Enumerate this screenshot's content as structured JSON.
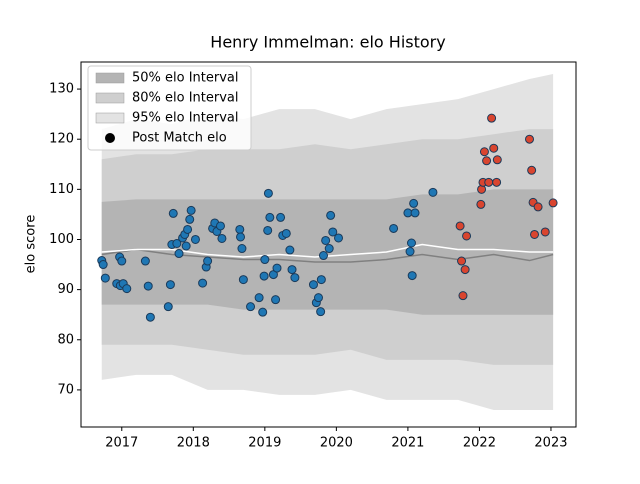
{
  "chart_data": {
    "type": "scatter",
    "title": "Henry Immelman: elo History",
    "y_label": "elo score",
    "xlim": [
      2016.43,
      2023.35
    ],
    "ylim": [
      62.6,
      135.4
    ],
    "xticks": [
      2017,
      2018,
      2019,
      2020,
      2021,
      2022,
      2023
    ],
    "yticks": [
      70,
      80,
      90,
      100,
      110,
      120,
      130
    ],
    "legend": "upper left",
    "bands": [
      {
        "name": "95% elo Interval",
        "color": "#e3e3e3",
        "x": [
          2016.72,
          2017.2,
          2017.7,
          2018.2,
          2018.7,
          2019.2,
          2019.7,
          2020.2,
          2020.7,
          2021.2,
          2021.7,
          2022.2,
          2022.7,
          2023.03
        ],
        "upper": [
          122,
          124,
          123,
          125,
          124,
          126,
          126,
          124,
          126,
          127,
          128,
          130,
          132,
          133
        ],
        "lower": [
          72,
          73,
          73,
          70,
          70,
          69,
          69,
          70,
          68,
          68,
          68,
          66,
          66,
          66
        ]
      },
      {
        "name": "80% elo Interval",
        "color": "#cfcfcf",
        "x": [
          2016.72,
          2017.2,
          2017.7,
          2018.2,
          2018.7,
          2019.2,
          2019.7,
          2020.2,
          2020.7,
          2021.2,
          2021.7,
          2022.2,
          2022.7,
          2023.03
        ],
        "upper": [
          116,
          117,
          117,
          118,
          118,
          118,
          119,
          118,
          119,
          120,
          120,
          121,
          122,
          122
        ],
        "lower": [
          79,
          79,
          79,
          78,
          77,
          77,
          77,
          78,
          76,
          76,
          76,
          75,
          75,
          75
        ]
      },
      {
        "name": "50% elo Interval",
        "color": "#b4b4b4",
        "x": [
          2016.72,
          2017.2,
          2017.7,
          2018.2,
          2018.7,
          2019.2,
          2019.7,
          2020.2,
          2020.7,
          2021.2,
          2021.7,
          2022.2,
          2022.7,
          2023.03
        ],
        "upper": [
          107.5,
          108,
          108,
          108,
          108,
          108,
          108,
          108,
          108,
          109,
          109,
          110,
          110,
          110
        ],
        "lower": [
          87,
          87,
          87,
          87,
          86,
          86,
          86,
          86,
          86,
          85,
          85,
          85,
          85,
          85
        ]
      }
    ],
    "lines": [
      {
        "color": "#808080",
        "x": [
          2016.72,
          2017.2,
          2017.7,
          2018.2,
          2018.7,
          2019.2,
          2019.7,
          2020.2,
          2020.7,
          2021.2,
          2021.7,
          2022.2,
          2022.7,
          2023.03
        ],
        "values": [
          97,
          98,
          97,
          96.5,
          96,
          96,
          95.5,
          95.5,
          96,
          97,
          96,
          97,
          95.8,
          97
        ]
      },
      {
        "color": "#ffffff",
        "x": [
          2016.72,
          2017.2,
          2017.7,
          2018.2,
          2018.7,
          2019.2,
          2019.7,
          2020.2,
          2020.7,
          2021.2,
          2021.7,
          2022.2,
          2022.7,
          2023.03
        ],
        "values": [
          97.5,
          98,
          98,
          97,
          96.5,
          97,
          96.5,
          97,
          97.5,
          99,
          98,
          98,
          97.5,
          97.5
        ]
      }
    ],
    "series": [
      {
        "name": "Post Match elo",
        "color": "#000000",
        "colors": [
          "#1f77b4",
          "#d9452f"
        ],
        "x": [
          2016.72,
          2016.74,
          2016.77,
          2016.93,
          2016.97,
          2016.98,
          2017.0,
          2017.02,
          2017.07,
          2017.33,
          2017.37,
          2017.4,
          2017.65,
          2017.68,
          2017.7,
          2017.72,
          2017.77,
          2017.8,
          2017.85,
          2017.88,
          2017.9,
          2017.92,
          2017.95,
          2017.97,
          2018.03,
          2018.13,
          2018.18,
          2018.2,
          2018.27,
          2018.3,
          2018.33,
          2018.38,
          2018.4,
          2018.65,
          2018.66,
          2018.68,
          2018.7,
          2018.8,
          2018.92,
          2018.97,
          2018.99,
          2019.0,
          2019.05,
          2019.07,
          2019.04,
          2019.12,
          2019.15,
          2019.17,
          2019.22,
          2019.25,
          2019.3,
          2019.35,
          2019.38,
          2019.42,
          2019.68,
          2019.72,
          2019.75,
          2019.78,
          2019.79,
          2019.82,
          2019.85,
          2019.9,
          2019.92,
          2019.95,
          2020.03,
          2020.8,
          2021.0,
          2021.03,
          2021.05,
          2021.06,
          2021.08,
          2021.1,
          2021.35,
          2021.73,
          2021.75,
          2021.77,
          2021.8,
          2021.82,
          2022.02,
          2022.03,
          2022.05,
          2022.07,
          2022.1,
          2022.13,
          2022.17,
          2022.2,
          2022.25,
          2022.24,
          2022.7,
          2022.73,
          2022.75,
          2022.77,
          2022.82,
          2022.92,
          2023.03
        ],
        "values": [
          95.8,
          95,
          92.3,
          91.2,
          96.5,
          90.8,
          95.7,
          91.2,
          90.2,
          95.7,
          90.7,
          84.5,
          86.6,
          91,
          99,
          105.2,
          99.2,
          97.2,
          100.3,
          101,
          98.7,
          102,
          104,
          105.8,
          100,
          91.3,
          94.5,
          95.7,
          102.2,
          103.3,
          101.6,
          102.7,
          100.2,
          102,
          100.5,
          98.2,
          92,
          86.6,
          88.4,
          85.5,
          92.7,
          96,
          109.2,
          104.4,
          101.8,
          93,
          88,
          94.3,
          104.4,
          100.8,
          101.2,
          97.9,
          94,
          92.4,
          91,
          87.4,
          88.4,
          85.6,
          92,
          96.8,
          99.8,
          98.2,
          104.8,
          101.5,
          100.3,
          102.2,
          105.3,
          97.6,
          99.3,
          92.8,
          107.2,
          105.3,
          109.4,
          102.7,
          95.7,
          88.8,
          94,
          100.7,
          107,
          110,
          111.4,
          117.5,
          115.7,
          111.4,
          124.2,
          118.2,
          115.9,
          111.4,
          120,
          113.8,
          107.4,
          101,
          106.5,
          101.5,
          107.3
        ],
        "color_index": [
          0,
          0,
          0,
          0,
          0,
          0,
          0,
          0,
          0,
          0,
          0,
          0,
          0,
          0,
          0,
          0,
          0,
          0,
          0,
          0,
          0,
          0,
          0,
          0,
          0,
          0,
          0,
          0,
          0,
          0,
          0,
          0,
          0,
          0,
          0,
          0,
          0,
          0,
          0,
          0,
          0,
          0,
          0,
          0,
          0,
          0,
          0,
          0,
          0,
          0,
          0,
          0,
          0,
          0,
          0,
          0,
          0,
          0,
          0,
          0,
          0,
          0,
          0,
          0,
          0,
          0,
          0,
          0,
          0,
          0,
          0,
          0,
          0,
          1,
          1,
          1,
          1,
          1,
          1,
          1,
          1,
          1,
          1,
          1,
          1,
          1,
          1,
          1,
          1,
          1,
          1,
          1,
          1,
          1,
          1
        ]
      }
    ]
  }
}
